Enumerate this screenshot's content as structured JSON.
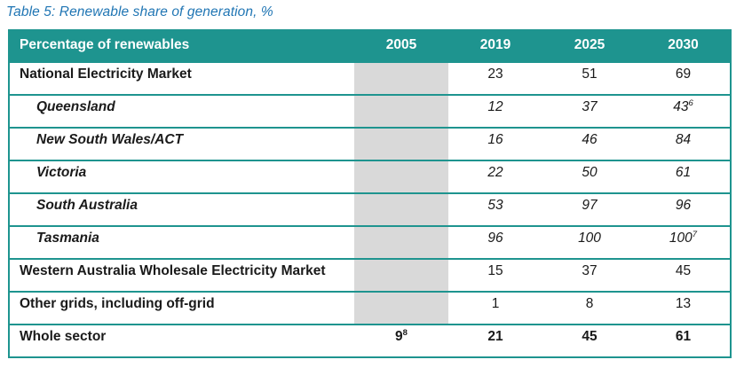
{
  "caption": "Table 5: Renewable share of generation, %",
  "colors": {
    "teal_header": "#1E948F",
    "header_text": "#FFFFFF",
    "shaded_column": "#D9D9D9",
    "caption_blue": "#2176B4"
  },
  "table": {
    "columns": [
      "Percentage of renewables",
      "2005",
      "2019",
      "2025",
      "2030"
    ],
    "rows": [
      {
        "label": "National Electricity Market",
        "y2005": "",
        "y2019": "23",
        "y2025": "51",
        "y2030": "69"
      },
      {
        "label": "Queensland",
        "y2005": "",
        "y2019": "12",
        "y2025": "37",
        "y2030": "43",
        "y2030_sup": "6"
      },
      {
        "label": "New South Wales/ACT",
        "y2005": "",
        "y2019": "16",
        "y2025": "46",
        "y2030": "84"
      },
      {
        "label": "Victoria",
        "y2005": "",
        "y2019": "22",
        "y2025": "50",
        "y2030": "61"
      },
      {
        "label": "South Australia",
        "y2005": "",
        "y2019": "53",
        "y2025": "97",
        "y2030": "96"
      },
      {
        "label": "Tasmania",
        "y2005": "",
        "y2019": "96",
        "y2025": "100",
        "y2030": "100",
        "y2030_sup": "7"
      },
      {
        "label": "Western Australia Wholesale Electricity Market",
        "y2005": "",
        "y2019": "15",
        "y2025": "37",
        "y2030": "45"
      },
      {
        "label": "Other grids, including off-grid",
        "y2005": "",
        "y2019": "1",
        "y2025": "8",
        "y2030": "13"
      },
      {
        "label": "Whole sector",
        "y2005": "9",
        "y2005_sup": "8",
        "y2019": "21",
        "y2025": "45",
        "y2030": "61"
      }
    ]
  }
}
